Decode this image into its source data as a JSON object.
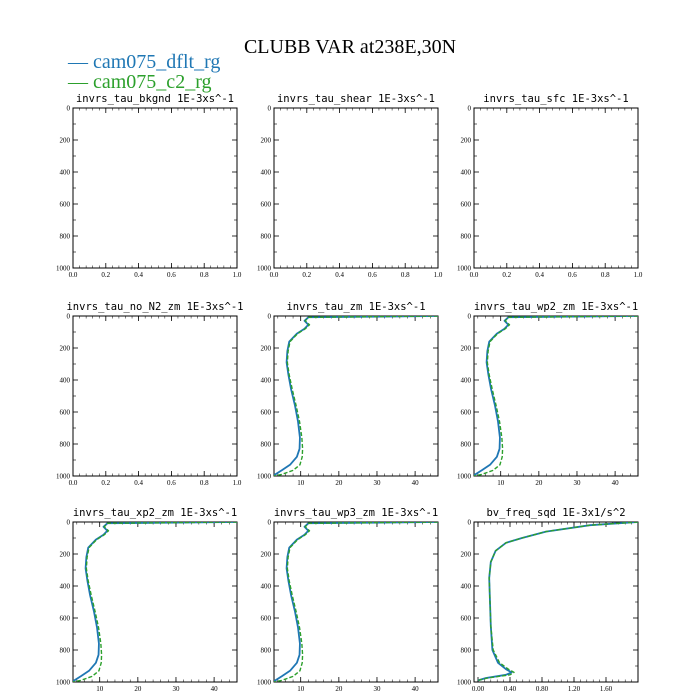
{
  "title": "CLUBB VAR at238E,30N",
  "legend": [
    {
      "label": "cam075_dflt_rg",
      "color": "#1f77b4"
    },
    {
      "label": "cam075_c2_rg",
      "color": "#2ca02c"
    }
  ],
  "chart_data": [
    {
      "type": "line",
      "title": "invrs_tau_bkgnd   1E-3xs^-1",
      "xlim": [
        0,
        1
      ],
      "ylim": [
        1000,
        0
      ],
      "xticks": [
        "0.0",
        "0.2",
        "0.4",
        "0.6",
        "0.8",
        "1.0"
      ],
      "yticks": [
        "0",
        "200",
        "400",
        "600",
        "800",
        "1000"
      ],
      "series": []
    },
    {
      "type": "line",
      "title": "invrs_tau_shear   1E-3xs^-1",
      "xlim": [
        0,
        1
      ],
      "ylim": [
        1000,
        0
      ],
      "xticks": [
        "0.0",
        "0.2",
        "0.4",
        "0.6",
        "0.8",
        "1.0"
      ],
      "yticks": [
        "0",
        "200",
        "400",
        "600",
        "800",
        "1000"
      ],
      "series": []
    },
    {
      "type": "line",
      "title": "invrs_tau_sfc   1E-3xs^-1",
      "xlim": [
        0,
        1
      ],
      "ylim": [
        1000,
        0
      ],
      "xticks": [
        "0.0",
        "0.2",
        "0.4",
        "0.6",
        "0.8",
        "1.0"
      ],
      "yticks": [
        "0",
        "200",
        "400",
        "600",
        "800",
        "1000"
      ],
      "series": []
    },
    {
      "type": "line",
      "title": "invrs_tau_no_N2_zm   1E-3xs^-1",
      "xlim": [
        0,
        1
      ],
      "ylim": [
        1000,
        0
      ],
      "xticks": [
        "0.0",
        "0.2",
        "0.4",
        "0.6",
        "0.8",
        "1.0"
      ],
      "yticks": [
        "0",
        "200",
        "400",
        "600",
        "800",
        "1000"
      ],
      "series": []
    },
    {
      "type": "line",
      "title": "invrs_tau_zm   1E-3xs^-1",
      "xlim": [
        3,
        46
      ],
      "ylim": [
        1000,
        0
      ],
      "xticks": [
        "10",
        "20",
        "30",
        "40"
      ],
      "yticks": [
        "0",
        "200",
        "400",
        "600",
        "800",
        "1000"
      ],
      "series": [
        {
          "values": [
            [
              46,
              0
            ],
            [
              12,
              8
            ],
            [
              11,
              30
            ],
            [
              12,
              55
            ],
            [
              11,
              80
            ],
            [
              9,
              110
            ],
            [
              7,
              160
            ],
            [
              6.5,
              220
            ],
            [
              6.3,
              290
            ],
            [
              6.8,
              370
            ],
            [
              7.5,
              460
            ],
            [
              8.5,
              560
            ],
            [
              9.3,
              660
            ],
            [
              9.8,
              760
            ],
            [
              9.7,
              830
            ],
            [
              9,
              880
            ],
            [
              7.2,
              930
            ],
            [
              5,
              965
            ],
            [
              3,
              995
            ]
          ]
        },
        {
          "values": [
            [
              46,
              0
            ],
            [
              12,
              8
            ],
            [
              11.2,
              30
            ],
            [
              12.3,
              55
            ],
            [
              11.2,
              80
            ],
            [
              9.2,
              110
            ],
            [
              7.2,
              160
            ],
            [
              6.7,
              220
            ],
            [
              6.5,
              290
            ],
            [
              7,
              370
            ],
            [
              7.8,
              460
            ],
            [
              8.8,
              560
            ],
            [
              9.7,
              660
            ],
            [
              10.3,
              760
            ],
            [
              10.5,
              830
            ],
            [
              10.4,
              880
            ],
            [
              9.8,
              930
            ],
            [
              8,
              965
            ],
            [
              5,
              990
            ],
            [
              3,
              1000
            ]
          ]
        }
      ]
    },
    {
      "type": "line",
      "title": "invrs_tau_wp2_zm   1E-3xs^-1",
      "xlim": [
        3,
        46
      ],
      "ylim": [
        1000,
        0
      ],
      "xticks": [
        "10",
        "20",
        "30",
        "40"
      ],
      "yticks": [
        "0",
        "200",
        "400",
        "600",
        "800",
        "1000"
      ],
      "series": [
        {
          "values": [
            [
              46,
              0
            ],
            [
              12,
              8
            ],
            [
              11,
              30
            ],
            [
              12,
              55
            ],
            [
              11,
              80
            ],
            [
              9,
              110
            ],
            [
              7,
              160
            ],
            [
              6.5,
              220
            ],
            [
              6.3,
              290
            ],
            [
              6.8,
              370
            ],
            [
              7.5,
              460
            ],
            [
              8.5,
              560
            ],
            [
              9.3,
              660
            ],
            [
              9.8,
              760
            ],
            [
              9.7,
              830
            ],
            [
              9,
              880
            ],
            [
              7.2,
              930
            ],
            [
              5,
              965
            ],
            [
              3,
              995
            ]
          ]
        },
        {
          "values": [
            [
              46,
              0
            ],
            [
              12,
              8
            ],
            [
              11.2,
              30
            ],
            [
              12.3,
              55
            ],
            [
              11.2,
              80
            ],
            [
              9.2,
              110
            ],
            [
              7.2,
              160
            ],
            [
              6.7,
              220
            ],
            [
              6.5,
              290
            ],
            [
              7,
              370
            ],
            [
              7.8,
              460
            ],
            [
              8.8,
              560
            ],
            [
              9.7,
              660
            ],
            [
              10.3,
              760
            ],
            [
              10.5,
              830
            ],
            [
              10.4,
              880
            ],
            [
              9.8,
              930
            ],
            [
              8,
              965
            ],
            [
              5,
              990
            ],
            [
              3,
              1000
            ]
          ]
        }
      ]
    },
    {
      "type": "line",
      "title": "invrs_tau_xp2_zm   1E-3xs^-1",
      "xlim": [
        3,
        46
      ],
      "ylim": [
        1000,
        0
      ],
      "xticks": [
        "10",
        "20",
        "30",
        "40"
      ],
      "yticks": [
        "0",
        "200",
        "400",
        "600",
        "800",
        "1000"
      ],
      "series": [
        {
          "values": [
            [
              46,
              0
            ],
            [
              12,
              8
            ],
            [
              11,
              30
            ],
            [
              12,
              55
            ],
            [
              11,
              80
            ],
            [
              9,
              110
            ],
            [
              7,
              160
            ],
            [
              6.5,
              220
            ],
            [
              6.3,
              290
            ],
            [
              6.8,
              370
            ],
            [
              7.5,
              460
            ],
            [
              8.5,
              560
            ],
            [
              9.3,
              660
            ],
            [
              9.8,
              760
            ],
            [
              9.7,
              830
            ],
            [
              9,
              880
            ],
            [
              7.2,
              930
            ],
            [
              5,
              965
            ],
            [
              3,
              995
            ]
          ]
        },
        {
          "values": [
            [
              46,
              0
            ],
            [
              12,
              8
            ],
            [
              11.2,
              30
            ],
            [
              12.3,
              55
            ],
            [
              11.2,
              80
            ],
            [
              9.2,
              110
            ],
            [
              7.2,
              160
            ],
            [
              6.7,
              220
            ],
            [
              6.5,
              290
            ],
            [
              7,
              370
            ],
            [
              7.8,
              460
            ],
            [
              8.8,
              560
            ],
            [
              9.7,
              660
            ],
            [
              10.3,
              760
            ],
            [
              10.5,
              830
            ],
            [
              10.4,
              880
            ],
            [
              9.8,
              930
            ],
            [
              8,
              965
            ],
            [
              5,
              990
            ],
            [
              3,
              1000
            ]
          ]
        }
      ]
    },
    {
      "type": "line",
      "title": "invrs_tau_wp3_zm   1E-3xs^-1",
      "xlim": [
        3,
        46
      ],
      "ylim": [
        1000,
        0
      ],
      "xticks": [
        "10",
        "20",
        "30",
        "40"
      ],
      "yticks": [
        "0",
        "200",
        "400",
        "600",
        "800",
        "1000"
      ],
      "series": [
        {
          "values": [
            [
              46,
              0
            ],
            [
              12,
              8
            ],
            [
              11,
              30
            ],
            [
              12,
              55
            ],
            [
              11,
              80
            ],
            [
              9,
              110
            ],
            [
              7,
              160
            ],
            [
              6.5,
              220
            ],
            [
              6.3,
              290
            ],
            [
              6.8,
              370
            ],
            [
              7.5,
              460
            ],
            [
              8.5,
              560
            ],
            [
              9.3,
              660
            ],
            [
              9.8,
              760
            ],
            [
              9.7,
              830
            ],
            [
              9,
              880
            ],
            [
              7.2,
              930
            ],
            [
              5,
              965
            ],
            [
              3,
              995
            ]
          ]
        },
        {
          "values": [
            [
              46,
              0
            ],
            [
              12,
              8
            ],
            [
              11.2,
              30
            ],
            [
              12.3,
              55
            ],
            [
              11.2,
              80
            ],
            [
              9.2,
              110
            ],
            [
              7.2,
              160
            ],
            [
              6.7,
              220
            ],
            [
              6.5,
              290
            ],
            [
              7,
              370
            ],
            [
              7.8,
              460
            ],
            [
              8.8,
              560
            ],
            [
              9.7,
              660
            ],
            [
              10.3,
              760
            ],
            [
              10.5,
              830
            ],
            [
              10.4,
              880
            ],
            [
              9.8,
              930
            ],
            [
              8,
              965
            ],
            [
              5,
              990
            ],
            [
              3,
              1000
            ]
          ]
        }
      ]
    },
    {
      "type": "line",
      "title": "bv_freq_sqd   1E-3x1/s^2",
      "xlim": [
        -0.05,
        2.0
      ],
      "ylim": [
        1000,
        0
      ],
      "xticks": [
        "0.00",
        "0.40",
        "0.80",
        "1.20",
        "1.60"
      ],
      "yticks": [
        "0",
        "200",
        "400",
        "600",
        "800",
        "1000"
      ],
      "series": [
        {
          "values": [
            [
              2.0,
              0
            ],
            [
              1.4,
              20
            ],
            [
              0.85,
              60
            ],
            [
              0.55,
              100
            ],
            [
              0.35,
              130
            ],
            [
              0.22,
              180
            ],
            [
              0.16,
              250
            ],
            [
              0.14,
              350
            ],
            [
              0.15,
              500
            ],
            [
              0.16,
              650
            ],
            [
              0.18,
              800
            ],
            [
              0.25,
              880
            ],
            [
              0.35,
              920
            ],
            [
              0.42,
              940
            ],
            [
              0.35,
              955
            ],
            [
              0.1,
              975
            ],
            [
              0.0,
              990
            ]
          ]
        },
        {
          "values": [
            [
              2.0,
              0
            ],
            [
              1.4,
              20
            ],
            [
              0.85,
              60
            ],
            [
              0.55,
              100
            ],
            [
              0.35,
              130
            ],
            [
              0.22,
              180
            ],
            [
              0.16,
              250
            ],
            [
              0.14,
              350
            ],
            [
              0.15,
              500
            ],
            [
              0.16,
              650
            ],
            [
              0.19,
              800
            ],
            [
              0.27,
              880
            ],
            [
              0.38,
              920
            ],
            [
              0.45,
              940
            ],
            [
              0.4,
              955
            ],
            [
              0.12,
              975
            ],
            [
              0.0,
              990
            ]
          ]
        }
      ]
    }
  ]
}
